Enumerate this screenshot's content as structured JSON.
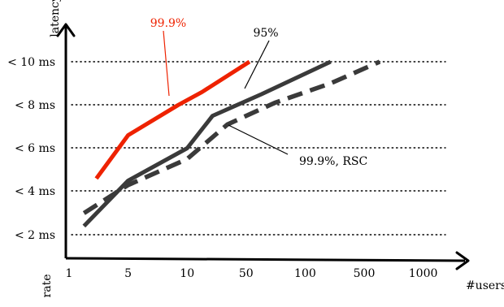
{
  "chart_data": {
    "type": "line",
    "xlabel": "#users",
    "ylabel": "latency",
    "secondary_ylabel": "rate",
    "x_tick_labels": [
      "1",
      "5",
      "10",
      "50",
      "100",
      "500",
      "1000"
    ],
    "y_tick_labels": [
      "< 2 ms",
      "< 4 ms",
      "< 6 ms",
      "< 8 ms",
      "< 10 ms"
    ],
    "x_scale": "log",
    "y_levels": [
      2,
      4,
      6,
      8,
      10
    ],
    "grid": "horizontal-dotted",
    "series": [
      {
        "name": "99.9%",
        "color": "#ee2200",
        "style": "solid",
        "points": [
          [
            2.1,
            4.6
          ],
          [
            5,
            6.6
          ],
          [
            9,
            8.0
          ],
          [
            15,
            8.6
          ],
          [
            52,
            10.0
          ]
        ]
      },
      {
        "name": "95%",
        "color": "#3a3a3a",
        "style": "solid",
        "points": [
          [
            1.5,
            2.4
          ],
          [
            5,
            4.5
          ],
          [
            10,
            6.0
          ],
          [
            20,
            7.5
          ],
          [
            60,
            8.5
          ],
          [
            200,
            10.0
          ]
        ]
      },
      {
        "name": "99.9%, RSC",
        "color": "#3a3a3a",
        "style": "dashed",
        "points": [
          [
            1.5,
            3.0
          ],
          [
            5,
            4.3
          ],
          [
            10,
            5.5
          ],
          [
            30,
            7.1
          ],
          [
            70,
            8.1
          ],
          [
            200,
            9.0
          ],
          [
            600,
            10.0
          ]
        ]
      }
    ]
  }
}
